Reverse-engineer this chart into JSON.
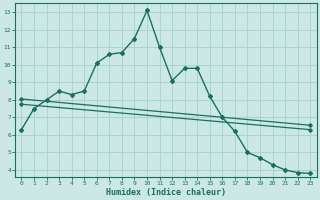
{
  "xlabel": "Humidex (Indice chaleur)",
  "bg_color": "#cce8e4",
  "line_color": "#1a6e64",
  "grid_color": "#aad4ce",
  "spine_color": "#1a6e64",
  "x_ticks": [
    0,
    1,
    2,
    3,
    4,
    5,
    6,
    7,
    8,
    9,
    10,
    11,
    12,
    13,
    14,
    15,
    16,
    17,
    18,
    19,
    20,
    21,
    22,
    23
  ],
  "y_ticks": [
    4,
    5,
    6,
    7,
    8,
    9,
    10,
    11,
    12,
    13
  ],
  "ylim": [
    3.6,
    13.5
  ],
  "xlim": [
    -0.5,
    23.5
  ],
  "curve1_x": [
    0,
    1,
    2,
    3,
    4,
    5,
    6,
    7,
    8,
    9,
    10,
    11,
    12,
    13,
    14,
    15,
    16,
    17,
    18,
    19,
    20,
    21,
    22,
    23
  ],
  "curve1_y": [
    6.3,
    7.5,
    8.0,
    8.5,
    8.3,
    8.5,
    10.1,
    10.6,
    10.7,
    11.5,
    13.1,
    11.0,
    9.1,
    9.8,
    9.8,
    8.2,
    7.0,
    6.2,
    5.0,
    4.7,
    4.3,
    4.0,
    3.85,
    3.8
  ],
  "line2_x": [
    0,
    23
  ],
  "line2_y": [
    8.05,
    6.55
  ],
  "line3_x": [
    0,
    23
  ],
  "line3_y": [
    7.75,
    6.3
  ]
}
